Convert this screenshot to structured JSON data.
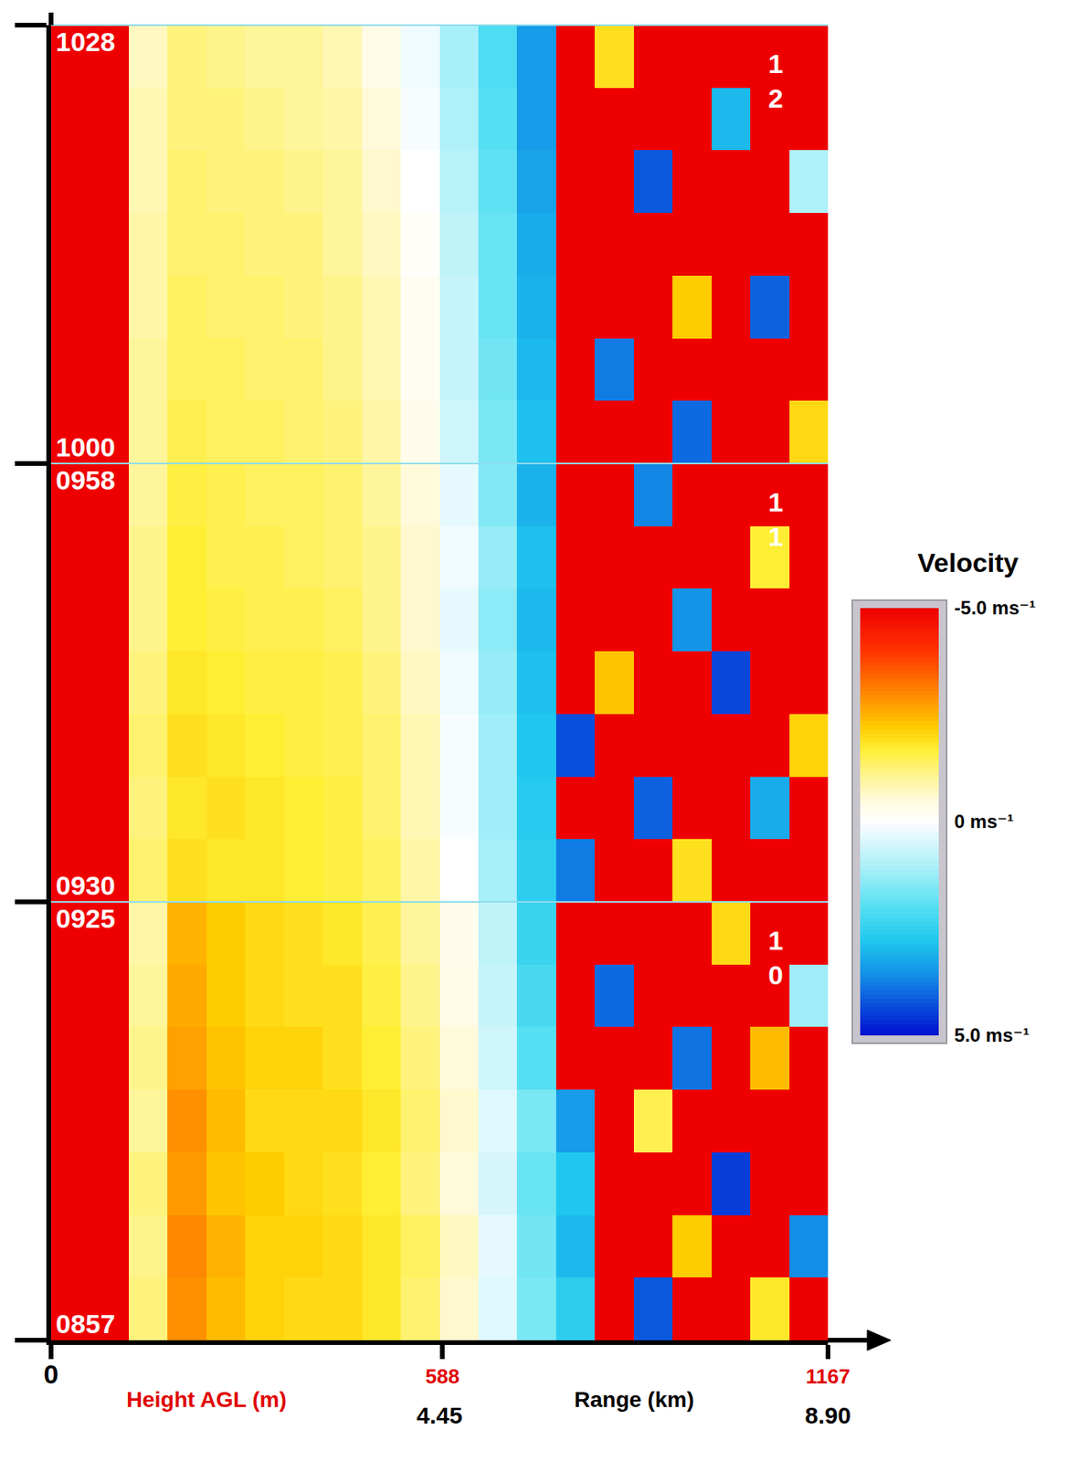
{
  "chart_data": {
    "type": "heatmap",
    "xlabel": "Height AGL (m)",
    "xlim": [
      0,
      1167
    ],
    "xticks": [
      0,
      588,
      1167
    ],
    "x2label": "Range (km)",
    "x2lim": [
      0,
      8.9
    ],
    "x2ticks": [
      4.45,
      {
        "value": 8.9,
        "label": "8.90"
      }
    ],
    "x": [
      29.2,
      87.5,
      145.9,
      204.2,
      262.6,
      320.9,
      379.3,
      437.6,
      496.0,
      554.3,
      612.7,
      671.0,
      729.4,
      787.7,
      846.1,
      904.4,
      962.8,
      1021.1,
      1079.5,
      1137.8
    ],
    "panels": [
      {
        "label": "10",
        "ylim": [
          537,
          565
        ],
        "yticks": [
          {
            "value": 537,
            "label": "0857"
          },
          {
            "value": 565,
            "label": "0925"
          }
        ],
        "y": [
          539,
          543,
          547,
          551,
          555,
          559,
          563
        ],
        "z": [
          [
            -5,
            -5,
            -1.2,
            -2.9,
            -2.4,
            -2.1,
            -2.0,
            -2.0,
            -1.8,
            -1.3,
            -0.6,
            0.4,
            1.6,
            2.6,
            -5,
            4.2,
            -5,
            -5,
            -1.8,
            -5
          ],
          [
            -5,
            -5,
            -1.1,
            -3.0,
            -2.5,
            -2.1,
            -2.1,
            -2.0,
            -1.8,
            -1.4,
            -0.7,
            0.3,
            1.7,
            3.0,
            -5,
            -5,
            -2.2,
            -5,
            -5,
            3.6
          ],
          [
            -5,
            -5,
            -1.2,
            -2.8,
            -2.3,
            -2.2,
            -2.0,
            -1.9,
            -1.7,
            -1.2,
            -0.5,
            0.5,
            1.8,
            2.8,
            -5,
            -5,
            -5,
            4.5,
            -5,
            -5
          ],
          [
            -5,
            -5,
            -1.0,
            -2.9,
            -2.4,
            -2.0,
            -2.0,
            -2.0,
            -1.8,
            -1.3,
            -0.6,
            0.4,
            1.6,
            3.4,
            -5,
            -1.5,
            -5,
            -5,
            -5,
            -5
          ],
          [
            -5,
            -5,
            -1.1,
            -2.7,
            -2.3,
            -2.1,
            -2.1,
            -1.9,
            -1.7,
            -1.2,
            -0.5,
            0.6,
            2.0,
            -5,
            -5,
            -5,
            3.9,
            -5,
            -2.4,
            -5
          ],
          [
            -5,
            -5,
            -1.0,
            -2.6,
            -2.2,
            -2.0,
            -1.9,
            -1.9,
            -1.6,
            -1.1,
            -0.4,
            0.7,
            2.2,
            -5,
            4.0,
            -5,
            -5,
            -5,
            -5,
            1.2
          ],
          [
            -5,
            -5,
            -0.9,
            -2.5,
            -2.2,
            -2.0,
            -1.9,
            -1.8,
            -1.5,
            -1.0,
            -0.3,
            0.8,
            2.4,
            -5,
            -5,
            -5,
            -5,
            -2.0,
            -5,
            -5
          ]
        ]
      },
      {
        "label": "11",
        "ylim": [
          570,
          598
        ],
        "yticks": [
          {
            "value": 570,
            "label": "0930"
          },
          {
            "value": 598,
            "label": "0958"
          }
        ],
        "y": [
          572,
          576,
          580,
          584,
          588,
          592,
          596
        ],
        "z": [
          [
            -5,
            -5,
            -1.3,
            -1.9,
            -1.8,
            -1.8,
            -1.7,
            -1.6,
            -1.4,
            -0.9,
            0.0,
            1.1,
            2.6,
            3.8,
            -5,
            -5,
            -1.9,
            -5,
            -5,
            -5
          ],
          [
            -5,
            -5,
            -1.2,
            -1.8,
            -1.9,
            -1.8,
            -1.7,
            -1.6,
            -1.3,
            -0.8,
            0.1,
            1.2,
            2.7,
            -5,
            -5,
            4.1,
            -5,
            -5,
            3.2,
            -5
          ],
          [
            -5,
            -5,
            -1.3,
            -1.9,
            -1.8,
            -1.7,
            -1.6,
            -1.5,
            -1.3,
            -0.8,
            0.1,
            1.2,
            2.8,
            4.3,
            -5,
            -5,
            -5,
            -5,
            -5,
            -2.1
          ],
          [
            -5,
            -5,
            -1.2,
            -1.8,
            -1.7,
            -1.6,
            -1.6,
            -1.5,
            -1.2,
            -0.7,
            0.2,
            1.3,
            2.9,
            -5,
            -2.3,
            -5,
            -5,
            4.4,
            -5,
            -5
          ],
          [
            -5,
            -5,
            -1.1,
            -1.7,
            -1.6,
            -1.5,
            -1.5,
            -1.4,
            -1.1,
            -0.6,
            0.3,
            1.4,
            3.0,
            -5,
            -5,
            -5,
            3.5,
            -5,
            -5,
            -5
          ],
          [
            -5,
            -5,
            -1.1,
            -1.7,
            -1.5,
            -1.5,
            -1.4,
            -1.3,
            -1.1,
            -0.6,
            0.2,
            1.3,
            2.9,
            -5,
            -5,
            -5,
            -5,
            -5,
            -1.7,
            -5
          ],
          [
            -5,
            -5,
            -1.0,
            -1.6,
            -1.5,
            -1.4,
            -1.4,
            -1.3,
            -1.0,
            -0.5,
            0.3,
            1.5,
            3.1,
            -5,
            -5,
            3.7,
            -5,
            -5,
            -5,
            -5
          ]
        ]
      },
      {
        "label": "12",
        "ylim": [
          600,
          628
        ],
        "yticks": [
          {
            "value": 600,
            "label": "1000"
          },
          {
            "value": 628,
            "label": "1028"
          }
        ],
        "y": [
          602,
          606,
          610,
          614,
          618,
          622,
          626
        ],
        "z": [
          [
            -5,
            -5,
            -1.0,
            -1.5,
            -1.4,
            -1.4,
            -1.3,
            -1.2,
            -0.9,
            -0.3,
            0.6,
            1.6,
            2.9,
            -5,
            -5,
            -5,
            4.0,
            -5,
            -5,
            -2.0
          ],
          [
            -5,
            -5,
            -1.0,
            -1.4,
            -1.4,
            -1.3,
            -1.3,
            -1.1,
            -0.8,
            -0.2,
            0.7,
            1.7,
            3.0,
            -5,
            3.8,
            -5,
            -5,
            -5,
            -5,
            -5
          ],
          [
            -5,
            -5,
            -0.9,
            -1.4,
            -1.3,
            -1.3,
            -1.2,
            -1.1,
            -0.8,
            -0.2,
            0.7,
            1.8,
            3.1,
            -5,
            -5,
            -5,
            -2.2,
            -5,
            4.1,
            -5
          ],
          [
            -5,
            -5,
            -0.9,
            -1.3,
            -1.3,
            -1.2,
            -1.2,
            -1.0,
            -0.7,
            -0.1,
            0.8,
            1.8,
            3.2,
            -5,
            -5,
            -5,
            -5,
            -5,
            -5,
            -5
          ],
          [
            -5,
            -5,
            -0.8,
            -1.3,
            -1.2,
            -1.2,
            -1.1,
            -1.0,
            -0.6,
            0.0,
            0.9,
            1.9,
            3.3,
            -5,
            -5,
            4.2,
            -5,
            -5,
            -5,
            1.0
          ],
          [
            -5,
            -5,
            -0.8,
            -1.2,
            -1.2,
            -1.1,
            -1.0,
            -0.9,
            -0.5,
            0.1,
            1.0,
            2.0,
            3.4,
            -5,
            -5,
            -5,
            -5,
            3.0,
            -5,
            -5
          ],
          [
            -5,
            -5,
            -0.7,
            -1.2,
            -1.1,
            -1.0,
            -1.0,
            -0.8,
            -0.4,
            0.2,
            1.1,
            2.1,
            3.4,
            -5,
            -1.9,
            -5,
            -5,
            -5,
            -5,
            -5
          ]
        ]
      }
    ],
    "colorbar": {
      "title": "Velocity",
      "zlim": [
        -5,
        5
      ],
      "ticks": [
        {
          "value": -5,
          "label": "-5.0 ms⁻¹"
        },
        {
          "value": 0,
          "label": "0 ms⁻¹"
        },
        {
          "value": 5,
          "label": "5.0 ms⁻¹"
        }
      ]
    }
  }
}
